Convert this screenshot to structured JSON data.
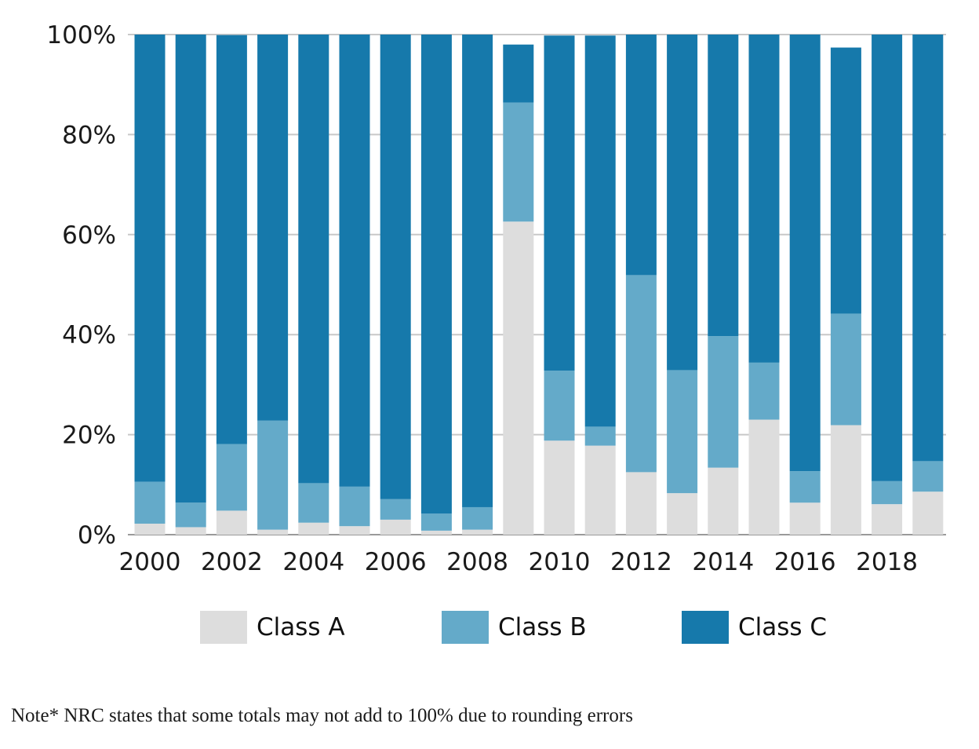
{
  "chart_data": {
    "type": "bar",
    "stacked": true,
    "categories": [
      "2000",
      "2001",
      "2002",
      "2003",
      "2004",
      "2005",
      "2006",
      "2007",
      "2008",
      "2009",
      "2010",
      "2011",
      "2012",
      "2013",
      "2014",
      "2015",
      "2016",
      "2017",
      "2018",
      "2019"
    ],
    "x_tick_labels": [
      "2000",
      "",
      "2002",
      "",
      "2004",
      "",
      "2006",
      "",
      "2008",
      "",
      "2010",
      "",
      "2012",
      "",
      "2014",
      "",
      "2016",
      "",
      "2018",
      ""
    ],
    "series": [
      {
        "name": "Class A",
        "color": "#dddddd",
        "values": [
          2.2,
          1.5,
          4.8,
          1.0,
          2.4,
          1.7,
          3.0,
          0.8,
          1.0,
          62.6,
          18.8,
          17.8,
          12.5,
          8.3,
          13.4,
          23.0,
          6.4,
          21.9,
          6.1,
          8.6
        ]
      },
      {
        "name": "Class B",
        "color": "#64aac9",
        "values": [
          8.4,
          4.9,
          13.3,
          21.8,
          7.9,
          7.9,
          4.1,
          3.4,
          4.5,
          23.8,
          14.0,
          3.8,
          39.4,
          24.6,
          26.3,
          11.4,
          6.3,
          22.3,
          4.6,
          6.1
        ]
      },
      {
        "name": "Class C",
        "color": "#1679ab",
        "values": [
          89.4,
          93.6,
          81.8,
          77.2,
          89.7,
          90.4,
          92.9,
          95.8,
          94.5,
          11.6,
          67.0,
          78.2,
          48.1,
          67.1,
          60.3,
          65.6,
          87.3,
          53.2,
          89.3,
          85.3
        ]
      }
    ],
    "ylim": [
      0,
      100
    ],
    "y_ticks": [
      "0%",
      "20%",
      "40%",
      "60%",
      "80%",
      "100%"
    ],
    "y_tick_values": [
      0,
      20,
      40,
      60,
      80,
      100
    ],
    "grid": "horizontal",
    "legend_position": "bottom"
  },
  "note": "Note* NRC states that some totals may not add to 100% due to rounding errors"
}
